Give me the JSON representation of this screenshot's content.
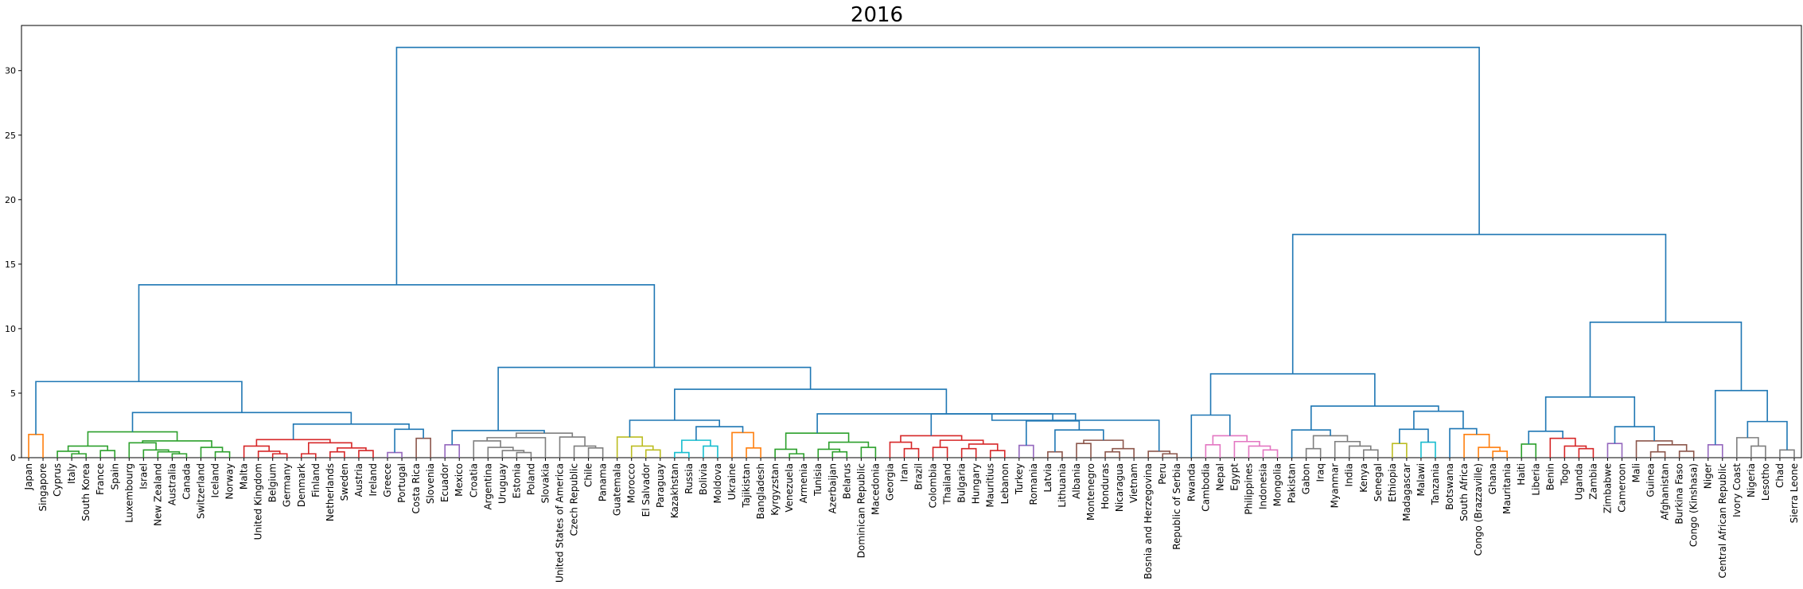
{
  "chart_data": {
    "type": "dendrogram",
    "title": "2016",
    "ylim": [
      0,
      33.5
    ],
    "yticks": [
      0,
      5,
      10,
      15,
      20,
      25,
      30
    ],
    "leaves": [
      "Japan",
      "Singapore",
      "Cyprus",
      "Italy",
      "South Korea",
      "France",
      "Spain",
      "Luxembourg",
      "Israel",
      "New Zealand",
      "Australia",
      "Canada",
      "Switzerland",
      "Iceland",
      "Norway",
      "Malta",
      "United Kingdom",
      "Belgium",
      "Germany",
      "Denmark",
      "Finland",
      "Netherlands",
      "Sweden",
      "Austria",
      "Ireland",
      "Greece",
      "Portugal",
      "Costa Rica",
      "Slovenia",
      "Ecuador",
      "Mexico",
      "Croatia",
      "Argentina",
      "Uruguay",
      "Estonia",
      "Poland",
      "Slovakia",
      "United States of America",
      "Czech Republic",
      "Chile",
      "Panama",
      "Guatemala",
      "Morocco",
      "El Salvador",
      "Paraguay",
      "Kazakhstan",
      "Russia",
      "Bolivia",
      "Moldova",
      "Ukraine",
      "Tajikistan",
      "Bangladesh",
      "Kyrgyzstan",
      "Venezuela",
      "Armenia",
      "Tunisia",
      "Azerbaijan",
      "Belarus",
      "Dominican Republic",
      "Macedonia",
      "Georgia",
      "Iran",
      "Brazil",
      "Colombia",
      "Thailand",
      "Bulgaria",
      "Hungary",
      "Mauritius",
      "Lebanon",
      "Turkey",
      "Romania",
      "Latvia",
      "Lithuania",
      "Albania",
      "Montenegro",
      "Honduras",
      "Nicaragua",
      "Vietnam",
      "Bosnia and Herzegovina",
      "Peru",
      "Republic of Serbia",
      "Rwanda",
      "Cambodia",
      "Nepal",
      "Egypt",
      "Philippines",
      "Indonesia",
      "Mongolia",
      "Pakistan",
      "Gabon",
      "Iraq",
      "Myanmar",
      "India",
      "Kenya",
      "Senegal",
      "Ethiopia",
      "Madagascar",
      "Malawi",
      "Tanzania",
      "Botswana",
      "South Africa",
      "Congo (Brazzaville)",
      "Ghana",
      "Mauritania",
      "Haiti",
      "Liberia",
      "Benin",
      "Togo",
      "Uganda",
      "Zambia",
      "Zimbabwe",
      "Cameroon",
      "Mali",
      "Guinea",
      "Afghanistan",
      "Burkina Faso",
      "Congo (Kinshasa)",
      "Niger",
      "Central African Republic",
      "Ivory Coast",
      "Nigeria",
      "Lesotho",
      "Chad",
      "Sierra Leone"
    ],
    "colors": {
      "orange": "#ff7f0e",
      "green": "#2ca02c",
      "red": "#d62728",
      "purple": "#9467bd",
      "brown": "#8c564b",
      "pink": "#e377c2",
      "gray": "#7f7f7f",
      "olive": "#bcbd22",
      "cyan": "#17becf",
      "link": "#1f77b4"
    },
    "tree": [
      "link",
      31.8,
      [
        "link",
        13.4,
        [
          "link",
          5.9,
          [
            "orange",
            1.8,
            "Japan",
            "Singapore"
          ],
          [
            "link",
            3.5,
            [
              "green",
              2.0,
              [
                "green",
                0.9,
                [
                  "green",
                  0.5,
                  "Cyprus",
                  [
                    "green",
                    0.3,
                    "Italy",
                    "South Korea"
                  ]
                ],
                [
                  "green",
                  0.55,
                  "France",
                  "Spain"
                ]
              ],
              [
                "green",
                1.3,
                [
                  "green",
                  1.15,
                  "Luxembourg",
                  [
                    "green",
                    0.6,
                    "Israel",
                    [
                      "green",
                      0.45,
                      "New Zealand",
                      [
                        "green",
                        0.3,
                        "Australia",
                        "Canada"
                      ]
                    ]
                  ]
                ],
                [
                  "green",
                  0.8,
                  "Switzerland",
                  [
                    "green",
                    0.45,
                    "Iceland",
                    "Norway"
                  ]
                ]
              ]
            ],
            [
              "link",
              2.6,
              [
                "red",
                1.4,
                [
                  "red",
                  0.9,
                  "Malta",
                  [
                    "red",
                    0.5,
                    "United Kingdom",
                    [
                      "red",
                      0.3,
                      "Belgium",
                      "Germany"
                    ]
                  ]
                ],
                [
                  "red",
                  1.15,
                  [
                    "red",
                    0.3,
                    "Denmark",
                    "Finland"
                  ],
                  [
                    "red",
                    0.75,
                    [
                      "red",
                      0.45,
                      "Netherlands",
                      "Sweden"
                    ],
                    [
                      "red",
                      0.55,
                      "Austria",
                      "Ireland"
                    ]
                  ]
                ]
              ],
              [
                "link",
                2.2,
                [
                  "purple",
                  0.4,
                  "Greece",
                  "Portugal"
                ],
                [
                  "brown",
                  1.5,
                  "Costa Rica",
                  "Slovenia"
                ]
              ]
            ]
          ]
        ],
        [
          "link",
          7.0,
          [
            "link",
            2.1,
            [
              "purple",
              1.0,
              "Ecuador",
              "Mexico"
            ],
            [
              "gray",
              1.9,
              [
                "gray",
                1.55,
                [
                  "gray",
                  1.3,
                  "Croatia",
                  [
                    "gray",
                    0.8,
                    "Argentina",
                    [
                      "gray",
                      0.55,
                      "Uruguay",
                      [
                        "gray",
                        0.4,
                        "Estonia",
                        "Poland"
                      ]
                    ]
                  ]
                ],
                "Slovakia"
              ],
              [
                "gray",
                1.6,
                "United States of America",
                [
                  "gray",
                  0.9,
                  "Czech Republic",
                  [
                    "gray",
                    0.75,
                    "Chile",
                    "Panama"
                  ]
                ]
              ]
            ]
          ],
          [
            "link",
            5.3,
            [
              "link",
              2.9,
              [
                "olive",
                1.6,
                "Guatemala",
                [
                  "olive",
                  0.9,
                  "Morocco",
                  [
                    "olive",
                    0.6,
                    "El Salvador",
                    "Paraguay"
                  ]
                ]
              ],
              [
                "link",
                2.4,
                [
                  "cyan",
                  1.35,
                  [
                    "cyan",
                    0.4,
                    "Kazakhstan",
                    "Russia"
                  ],
                  [
                    "cyan",
                    0.9,
                    "Bolivia",
                    "Moldova"
                  ]
                ],
                [
                  "orange",
                  1.95,
                  "Ukraine",
                  [
                    "orange",
                    0.75,
                    "Tajikistan",
                    "Bangladesh"
                  ]
                ]
              ]
            ],
            [
              "link",
              3.4,
              [
                "green",
                1.9,
                [
                  "green",
                  0.65,
                  "Kyrgyzstan",
                  [
                    "green",
                    0.3,
                    "Venezuela",
                    "Armenia"
                  ]
                ],
                [
                  "green",
                  1.2,
                  [
                    "green",
                    0.65,
                    "Tunisia",
                    [
                      "green",
                      0.45,
                      "Azerbaijan",
                      "Belarus"
                    ]
                  ],
                  [
                    "green",
                    0.8,
                    "Dominican Republic",
                    "Macedonia"
                  ]
                ]
              ],
              [
                "link",
                2.9,
                [
                  "link",
                  3.4,
                  [
                    "red",
                    1.7,
                    [
                      "red",
                      1.2,
                      "Georgia",
                      [
                        "red",
                        0.7,
                        "Iran",
                        "Brazil"
                      ]
                    ],
                    [
                      "red",
                      1.35,
                      [
                        "red",
                        0.8,
                        "Colombia",
                        "Thailand"
                      ],
                      [
                        "red",
                        1.05,
                        [
                          "red",
                          0.7,
                          "Bulgaria",
                          "Hungary"
                        ],
                        [
                          "red",
                          0.55,
                          "Mauritius",
                          "Lebanon"
                        ]
                      ]
                    ]
                  ],
                  [
                    "link",
                    2.85,
                    [
                      "purple",
                      0.95,
                      "Turkey",
                      "Romania"
                    ],
                    [
                      "link",
                      2.15,
                      [
                        "brown",
                        0.45,
                        "Latvia",
                        "Lithuania"
                      ],
                      [
                        "brown",
                        1.35,
                        [
                          "brown",
                          1.1,
                          "Albania",
                          "Montenegro"
                        ],
                        [
                          "brown",
                          0.7,
                          [
                            "brown",
                            0.45,
                            "Honduras",
                            "Nicaragua"
                          ],
                          "Vietnam"
                        ]
                      ]
                    ]
                  ]
                ],
                [
                  "brown",
                  0.5,
                  "Bosnia and Herzegovina",
                  [
                    "brown",
                    0.3,
                    "Peru",
                    "Republic of Serbia"
                  ]
                ]
              ]
            ]
          ]
        ]
      ],
      [
        "link",
        17.3,
        [
          "link",
          6.5,
          [
            "link",
            3.3,
            "Rwanda",
            [
              "pink",
              1.7,
              [
                "pink",
                1.0,
                "Cambodia",
                "Nepal"
              ],
              [
                "pink",
                1.25,
                "Egypt",
                [
                  "pink",
                  0.9,
                  "Philippines",
                  [
                    "pink",
                    0.6,
                    "Indonesia",
                    "Mongolia"
                  ]
                ]
              ]
            ]
          ],
          [
            "link",
            4.0,
            [
              "link",
              2.15,
              "Pakistan",
              [
                "gray",
                1.7,
                [
                  "gray",
                  0.7,
                  "Gabon",
                  "Iraq"
                ],
                [
                  "gray",
                  1.25,
                  "Myanmar",
                  [
                    "gray",
                    0.9,
                    "India",
                    [
                      "gray",
                      0.6,
                      "Kenya",
                      "Senegal"
                    ]
                  ]
                ]
              ]
            ],
            [
              "link",
              3.6,
              [
                "link",
                2.2,
                [
                  "olive",
                  1.1,
                  "Ethiopia",
                  "Madagascar"
                ],
                [
                  "cyan",
                  1.2,
                  "Malawi",
                  "Tanzania"
                ]
              ],
              [
                "link",
                2.25,
                "Botswana",
                [
                  "orange",
                  1.8,
                  "South Africa",
                  [
                    "orange",
                    0.8,
                    "Congo (Brazzaville)",
                    [
                      "orange",
                      0.5,
                      "Ghana",
                      "Mauritania"
                    ]
                  ]
                ]
              ]
            ]
          ]
        ],
        [
          "link",
          10.5,
          [
            "link",
            4.7,
            [
              "link",
              2.05,
              [
                "green",
                1.05,
                "Haiti",
                "Liberia"
              ],
              [
                "red",
                1.5,
                "Benin",
                [
                  "red",
                  0.9,
                  "Togo",
                  [
                    "red",
                    0.7,
                    "Uganda",
                    "Zambia"
                  ]
                ]
              ]
            ],
            [
              "link",
              2.4,
              [
                "purple",
                1.1,
                "Zimbabwe",
                "Cameroon"
              ],
              [
                "brown",
                1.3,
                "Mali",
                [
                  "brown",
                  1.0,
                  [
                    "brown",
                    0.45,
                    "Guinea",
                    "Afghanistan"
                  ],
                  [
                    "brown",
                    0.5,
                    "Burkina Faso",
                    "Congo (Kinshasa)"
                  ]
                ]
              ]
            ]
          ],
          [
            "link",
            5.2,
            [
              "purple",
              1.0,
              "Niger",
              "Central African Republic"
            ],
            [
              "link",
              2.8,
              [
                "gray",
                1.55,
                "Ivory Coast",
                [
                  "gray",
                  0.9,
                  "Nigeria",
                  "Lesotho"
                ]
              ],
              [
                "gray",
                0.6,
                "Chad",
                "Sierra Leone"
              ]
            ]
          ]
        ]
      ]
    ]
  }
}
